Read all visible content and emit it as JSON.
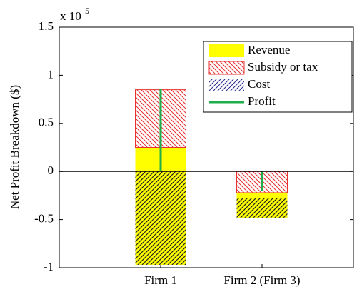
{
  "chart_data": {
    "type": "bar",
    "stacked": true,
    "ylabel": "Net Profit Breakdown ($)",
    "axis_multiplier": {
      "base": "x 10",
      "exponent": "5"
    },
    "categories": [
      "Firm 1",
      "Firm 2 (Firm 3)"
    ],
    "series": [
      {
        "name": "Revenue",
        "color": "#ffff00",
        "values": [
          0.25,
          -0.06
        ]
      },
      {
        "name": "Subsidy or tax",
        "color": "#e8302f",
        "values": [
          0.6,
          -0.22
        ]
      },
      {
        "name": "Cost",
        "color": "#2a2a90",
        "values": [
          -0.97,
          -0.2
        ]
      },
      {
        "name": "Profit",
        "type": "line",
        "color": "#1fae4b",
        "values": [
          0.86,
          -0.2
        ]
      }
    ],
    "ylim": [
      -1,
      1.5
    ],
    "yticks": [
      -1,
      -0.5,
      0,
      0.5,
      1,
      1.5
    ],
    "legend": "upper right"
  }
}
